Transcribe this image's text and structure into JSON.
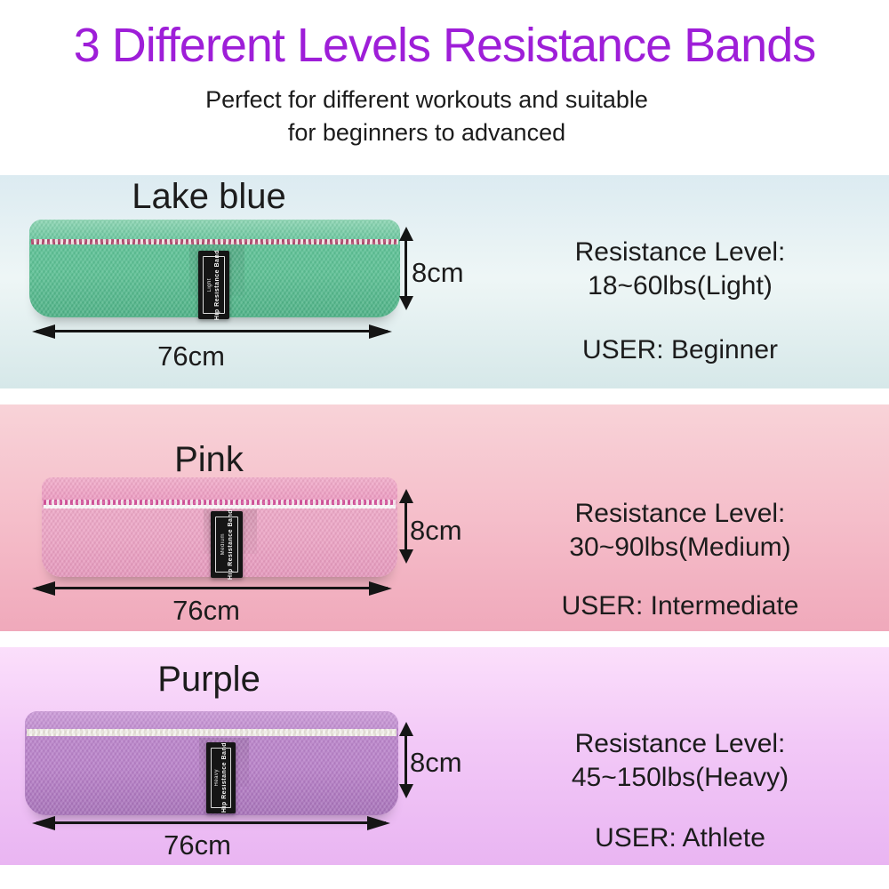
{
  "header": {
    "title": "3 Different Levels Resistance Bands",
    "subtitle_line1": "Perfect for different workouts and suitable",
    "subtitle_line2": "for beginners to advanced"
  },
  "colors": {
    "title_purple": "#9e1ed8",
    "text": "#1c1c1c",
    "lake_blue_band": "#5cc094",
    "pink_band": "#eda6c6",
    "purple_band": "#b981c9"
  },
  "sections": [
    {
      "name": "Lake blue",
      "tag_level": "Light",
      "tag_text": "Hip Resistance Band",
      "height_label": "8cm",
      "width_label": "76cm",
      "resistance_label": "Resistance Level:",
      "resistance_value": "18~60lbs(Light)",
      "user_label": "USER: Beginner"
    },
    {
      "name": "Pink",
      "tag_level": "Medium",
      "tag_text": "Hip Resistance Band",
      "height_label": "8cm",
      "width_label": "76cm",
      "resistance_label": "Resistance Level:",
      "resistance_value": "30~90lbs(Medium)",
      "user_label": "USER: Intermediate"
    },
    {
      "name": "Purple",
      "tag_level": "Heavy",
      "tag_text": "Hip Resistance Band",
      "height_label": "8cm",
      "width_label": "76cm",
      "resistance_label": "Resistance Level:",
      "resistance_value": "45~150lbs(Heavy)",
      "user_label": "USER: Athlete"
    }
  ]
}
